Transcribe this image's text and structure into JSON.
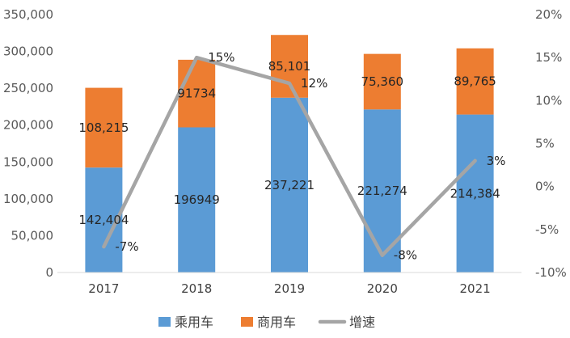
{
  "chart_data": {
    "type": "bar",
    "stacked": true,
    "categories": [
      "2017",
      "2018",
      "2019",
      "2020",
      "2021"
    ],
    "series": [
      {
        "name": "乘用车",
        "type": "bar",
        "axis": "left",
        "color": "#5b9bd5",
        "values": [
          142404,
          196949,
          237221,
          221274,
          214384
        ],
        "labels": [
          "142,404",
          "196949",
          "237,221",
          "221,274",
          "214,384"
        ]
      },
      {
        "name": "商用车",
        "type": "bar",
        "axis": "left",
        "color": "#ed7d31",
        "values": [
          108215,
          91734,
          85101,
          75360,
          89765
        ],
        "labels": [
          "108,215",
          "91734",
          "85,101",
          "75,360",
          "89,765"
        ]
      },
      {
        "name": "增速",
        "type": "line",
        "axis": "right",
        "color": "#a5a5a5",
        "values": [
          -7,
          15,
          12,
          -8,
          3
        ],
        "labels": [
          "-7%",
          "15%",
          "12%",
          "-8%",
          "3%"
        ]
      }
    ],
    "y_left": {
      "ylim": [
        0,
        350000
      ],
      "ticks": [
        "0",
        "50,000",
        "100,000",
        "150,000",
        "200,000",
        "250,000",
        "300,000",
        "350,000"
      ]
    },
    "y_right": {
      "ylim": [
        -10,
        20
      ],
      "ticks": [
        "-10%",
        "-5%",
        "0%",
        "5%",
        "10%",
        "15%",
        "20%"
      ]
    },
    "legend_position": "bottom",
    "grid": false
  }
}
